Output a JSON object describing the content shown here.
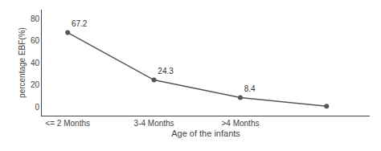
{
  "chart_data": {
    "type": "line",
    "x": [
      0,
      1,
      2,
      3
    ],
    "values": [
      67.2,
      24.3,
      8.4,
      0.5
    ],
    "value_labels": [
      "67.2",
      "24.3",
      "8.4",
      null
    ],
    "data_labels": true,
    "xlabel": "Age of the infants",
    "ylabel": "percentage EBF(%)",
    "xlim": [
      -0.3,
      3.5
    ],
    "xticks": [
      {
        "value": 0,
        "label": "<= 2 Months"
      },
      {
        "value": 1,
        "label": "3-4 Months"
      },
      {
        "value": 2,
        "label": ">4 Months"
      }
    ],
    "ylim": [
      -8,
      88
    ],
    "yticks": [
      0,
      20,
      40,
      60,
      80
    ],
    "color": "#555555",
    "marker": "circle",
    "grid": false
  }
}
